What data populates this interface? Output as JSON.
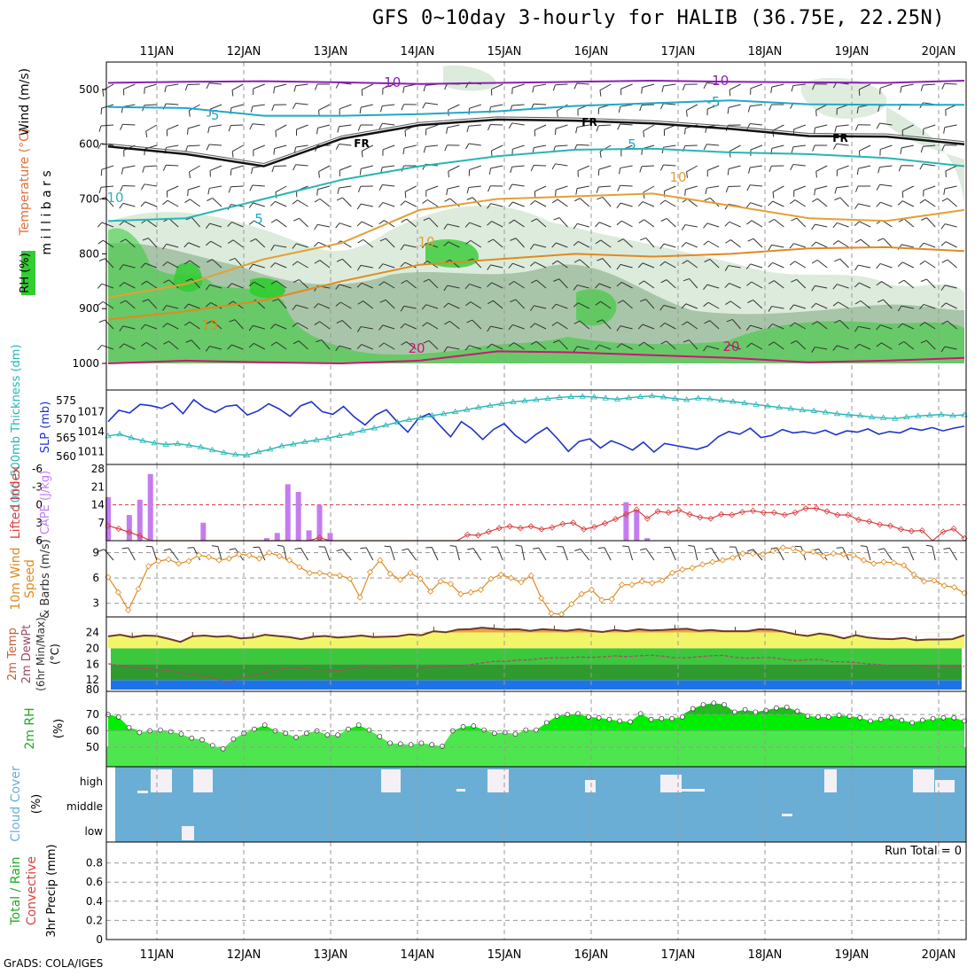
{
  "title": "GFS 0~10day 3-hourly for HALIB (36.75E, 22.25N)",
  "footer": "GrADS: COLA/IGES",
  "run_total_label": "Run Total = 0",
  "colors": {
    "rh_green": "#33cc33",
    "rh_light": "#dcebdc",
    "rh_mid": "#a9c5a9",
    "temp_orange": "#e3a035",
    "temp_cyan": "#20a8c8",
    "freezing_black": "#111111",
    "temp_purple": "#8a1fb0",
    "temp_magenta": "#d0147a",
    "slp_blue": "#1f33c9",
    "thickness_cyan": "#27b5b5",
    "cape_violet": "#c47cf0",
    "lifted_red": "#d94040",
    "wind_orange": "#e08a20",
    "temp2m_brown": "#6b3a2a",
    "cloud_blue": "#6aaed6",
    "rh2m_green": "#00ee00"
  },
  "chart_data": [
    {
      "panel": "upper-air",
      "type": "contour",
      "title": "GFS 0~10day 3-hourly for HALIB (36.75E, 22.25N)",
      "ylabel": "m i l l i b a r s",
      "side_labels": [
        "Wind (m/s)",
        "Temperature (°C)",
        "RH (%)"
      ],
      "x_ticks": [
        "11JAN",
        "12JAN",
        "13JAN",
        "14JAN",
        "15JAN",
        "16JAN",
        "17JAN",
        "18JAN",
        "19JAN",
        "20JAN"
      ],
      "y_ticks": [
        500,
        600,
        700,
        800,
        900,
        1000
      ],
      "ylim": [
        450,
        1000
      ],
      "contour_labels": [
        "-10",
        "-10",
        "-5",
        "-5",
        "FR",
        "FR",
        "FR",
        "5",
        "5",
        "10",
        "10",
        "10",
        "15",
        "20",
        "20"
      ],
      "isotherms": [
        {
          "label": "-10",
          "hpa": [
            488,
            486,
            485,
            487,
            490,
            488,
            486,
            484,
            486,
            487,
            488,
            484
          ]
        },
        {
          "label": "-5",
          "hpa": [
            532,
            534,
            548,
            548,
            545,
            540,
            530,
            525,
            520,
            527,
            528,
            528
          ]
        },
        {
          "label": "FR",
          "hpa": [
            604,
            618,
            640,
            590,
            565,
            555,
            557,
            562,
            572,
            585,
            586,
            600
          ]
        },
        {
          "label": "5",
          "hpa": [
            740,
            735,
            700,
            665,
            640,
            622,
            610,
            608,
            615,
            618,
            625,
            640
          ]
        },
        {
          "label": "10",
          "hpa": [
            880,
            855,
            810,
            780,
            720,
            700,
            695,
            690,
            712,
            735,
            740,
            720
          ]
        },
        {
          "label": "15",
          "hpa": [
            920,
            905,
            885,
            850,
            820,
            810,
            800,
            805,
            800,
            790,
            788,
            795
          ]
        },
        {
          "label": "20",
          "hpa": [
            1000,
            995,
            998,
            1000,
            995,
            978,
            980,
            985,
            990,
            998,
            995,
            990
          ]
        }
      ]
    },
    {
      "panel": "slp-thickness",
      "type": "line",
      "ylabel_left": "1000-500mb Thickness (dm)",
      "ylabel_right": "SLP (mb)",
      "y_ticks_left": [
        560,
        565,
        570,
        575
      ],
      "y_ticks_right": [
        1011,
        1014,
        1017
      ],
      "ylim_left": [
        559,
        576
      ],
      "ylim_right": [
        1009.7,
        1019.2
      ],
      "series": [
        {
          "values": [
            1015.5,
            1017.2,
            1016.8,
            1018.1,
            1017.9,
            1017.5,
            1018.3,
            1016.7,
            1018.8,
            1017.6,
            1016.9,
            1017.8,
            1018.0,
            1016.5,
            1017.1,
            1018.2,
            1017.4,
            1016.3,
            1017.9,
            1018.5,
            1017.0,
            1016.6,
            1017.8,
            1016.2,
            1015.0,
            1016.5,
            1017.3,
            1015.5,
            1013.9,
            1016.0,
            1016.7,
            1014.9,
            1013.2,
            1015.5,
            1014.4,
            1012.8,
            1014.3,
            1015.2,
            1013.5,
            1012.3,
            1013.6,
            1014.6,
            1012.9,
            1011.0,
            1012.5,
            1012.9,
            1011.5,
            1012.6,
            1012.0,
            1011.2,
            1012.4,
            1010.9,
            1012.2,
            1011.9,
            1011.6,
            1011.3,
            1011.8,
            1013.2,
            1014.0,
            1013.6,
            1014.5,
            1013.1,
            1013.4,
            1014.3,
            1013.8,
            1014.0,
            1013.7,
            1014.2,
            1013.5,
            1014.1,
            1013.9,
            1014.4,
            1013.6,
            1014.0,
            1013.8,
            1014.5,
            1014.2,
            1014.6,
            1014.1,
            1014.5,
            1014.8
          ]
        },
        {
          "values": [
            565.5,
            566.0,
            565.0,
            564.2,
            563.6,
            563.2,
            563.4,
            563.0,
            562.5,
            561.7,
            561.0,
            560.5,
            560.3,
            561.2,
            561.9,
            562.8,
            563.3,
            563.9,
            564.4,
            564.9,
            565.6,
            566.2,
            567.0,
            567.6,
            568.4,
            569.2,
            569.9,
            570.4,
            571.0,
            571.5,
            572.0,
            572.6,
            573.2,
            573.7,
            574.2,
            574.7,
            575.0,
            575.3,
            575.6,
            575.9,
            576.1,
            576.2,
            576.0,
            575.7,
            575.4,
            575.8,
            576.1,
            576.3,
            576.0,
            575.6,
            575.3,
            575.7,
            575.5,
            575.1,
            574.8,
            574.4,
            574.0,
            573.6,
            573.2,
            572.9,
            572.5,
            572.3,
            571.9,
            571.5,
            571.2,
            571.0,
            570.6,
            570.4,
            570.2,
            570.6,
            570.9,
            571.1,
            571.3,
            571.0,
            571.2
          ]
        }
      ]
    },
    {
      "panel": "cape-lifted-index",
      "type": "bar",
      "ylabel_left": "Lifted Index",
      "ylabel_right": "CAPE (J/kg)",
      "y_ticks_left": [
        "-6",
        "-3",
        "0",
        "3",
        "6"
      ],
      "y_ticks_right": [
        7,
        14,
        21,
        28
      ],
      "ylim_left": [
        6,
        -6
      ],
      "ylim_right": [
        0,
        28
      ],
      "series": [
        {
          "cape": [
            17,
            0,
            10,
            16,
            26,
            0,
            0,
            0,
            0,
            7,
            0,
            0,
            0,
            0,
            0,
            1,
            3,
            22,
            19,
            4,
            14,
            3,
            0,
            0,
            0,
            0,
            0,
            0,
            0,
            0,
            0,
            0,
            0,
            0,
            0,
            0,
            0,
            0,
            0,
            0,
            0,
            0,
            0,
            0,
            0,
            0,
            0,
            0,
            0,
            15,
            12,
            1,
            0,
            0,
            0,
            0,
            0,
            0,
            0,
            0,
            0,
            0,
            0,
            0,
            0,
            0,
            0,
            0,
            0,
            0,
            0,
            0,
            0,
            0,
            0,
            0,
            0,
            0,
            0,
            0,
            0,
            0
          ]
        },
        {
          "lifted_index": [
            3.5,
            4.0,
            4.6,
            5.2,
            6,
            6,
            6,
            6,
            6,
            6,
            6,
            6,
            6,
            6,
            6,
            6,
            6,
            6,
            6,
            6,
            5.5,
            6,
            6,
            6,
            6,
            6,
            6,
            6,
            6,
            6,
            6,
            6,
            6,
            6,
            5.0,
            5.1,
            4.5,
            3.9,
            3.6,
            3.9,
            3.6,
            4.1,
            3.8,
            3.2,
            3.0,
            4.1,
            3.7,
            3.1,
            2.4,
            1.6,
            0.8,
            2.3,
            1.1,
            1.3,
            0.9,
            1.6,
            2.1,
            2.3,
            1.6,
            1.7,
            1.2,
            1.0,
            1.3,
            1.3,
            1.7,
            1.3,
            0.6,
            0.6,
            1.1,
            1.7,
            1.7,
            2.5,
            2.8,
            3.3,
            3.5,
            4.1,
            4.4,
            4.3,
            6.0,
            4.5,
            4.0,
            5.6
          ]
        }
      ]
    },
    {
      "panel": "wind-10m",
      "type": "line",
      "ylabel": "10m Wind Speed & Barbs (m/s)",
      "y_ticks": [
        3,
        6,
        9
      ],
      "ylim": [
        1.6,
        10
      ],
      "series": [
        {
          "values": [
            6.1,
            4.3,
            2.2,
            4.7,
            7.4,
            8.0,
            8.2,
            7.7,
            8.0,
            8.7,
            8.5,
            8.1,
            8.3,
            8.8,
            8.7,
            8.3,
            9.0,
            8.6,
            8.1,
            7.3,
            6.6,
            6.6,
            6.4,
            6.3,
            5.9,
            3.7,
            6.7,
            8.1,
            6.5,
            5.8,
            6.6,
            5.9,
            4.4,
            5.6,
            5.3,
            4.1,
            4.3,
            4.6,
            5.9,
            6.4,
            6.0,
            5.5,
            6.3,
            3.6,
            1.8,
            1.7,
            2.9,
            4.1,
            4.6,
            3.4,
            3.5,
            5.2,
            5.2,
            5.6,
            5.4,
            5.7,
            6.6,
            7.0,
            7.2,
            7.6,
            7.9,
            8.1,
            8.4,
            8.9,
            8.9,
            8.8,
            9.2,
            9.6,
            9.5,
            9.0,
            9.1,
            8.6,
            8.9,
            8.8,
            8.7,
            8.1,
            7.7,
            7.9,
            7.8,
            7.5,
            6.4,
            5.6,
            5.7,
            5.1,
            4.9,
            4.2
          ]
        }
      ]
    },
    {
      "panel": "temp-2m",
      "type": "area",
      "ylabel": "2m Temp 2m DewPt (6hr Min/Max) (°C)",
      "y_ticks": [
        12,
        16,
        20,
        24
      ],
      "ylim": [
        9.6,
        27
      ],
      "y_tick_extra": "80",
      "series": [
        {
          "values": [
            23.0,
            23.4,
            22.8,
            23.2,
            23.1,
            22.4,
            21.6,
            23.0,
            23.2,
            22.9,
            23.1,
            22.5,
            22.7,
            23.4,
            23.1,
            22.8,
            22.3,
            22.9,
            23.1,
            22.7,
            22.9,
            23.2,
            22.8,
            22.9,
            23.0,
            23.5,
            23.3,
            24.3,
            24.0,
            24.7,
            24.8,
            25.2,
            24.9,
            24.7,
            24.8,
            24.4,
            24.8,
            24.6,
            24.4,
            24.8,
            24.4,
            24.1,
            24.6,
            24.3,
            24.8,
            24.5,
            24.6,
            24.8,
            24.9,
            24.4,
            24.6,
            24.3,
            24.3,
            24.3,
            24.8,
            24.7,
            24.2,
            23.5,
            23.1,
            23.7,
            23.3,
            22.5,
            23.3,
            22.7,
            22.4,
            22.3,
            22.6,
            22.0,
            22.2,
            22.2,
            22.3,
            23.3
          ]
        },
        {
          "values": [
            16.1,
            15.7,
            15.2,
            14.9,
            14.6,
            14.4,
            13.9,
            13.4,
            13.0,
            12.4,
            11.4,
            12.7,
            13.2,
            13.9,
            14.6,
            15.1,
            15.0,
            14.6,
            14.6,
            14.3,
            14.7,
            15.4,
            15.2,
            15.1,
            15.6,
            15.4,
            15.0,
            15.5,
            15.3,
            15.6,
            15.9,
            16.3,
            16.7,
            16.7,
            17.0,
            17.1,
            17.5,
            17.6,
            17.6,
            17.8,
            17.7,
            17.8,
            18.1,
            17.9,
            18.1,
            18.2,
            18.0,
            17.6,
            17.6,
            17.9,
            18.1,
            18.2,
            17.7,
            17.5,
            17.6,
            17.7,
            17.2,
            16.9,
            17.1,
            17.2,
            16.6,
            16.6,
            16.4,
            16.1,
            15.9,
            15.6,
            15.6,
            15.8,
            15.4,
            15.4,
            15.5,
            15.5
          ]
        }
      ]
    },
    {
      "panel": "rh-2m",
      "type": "area",
      "ylabel": "2m RH (%)",
      "y_ticks": [
        50,
        60,
        70
      ],
      "ylim": [
        38,
        82
      ],
      "series": [
        {
          "values": [
            70.0,
            68.5,
            62.0,
            59.0,
            60.0,
            60.5,
            59.5,
            58.0,
            55.5,
            54.5,
            51.0,
            49.0,
            55.0,
            58.5,
            61.0,
            63.5,
            60.0,
            58.5,
            56.0,
            58.5,
            60.0,
            57.5,
            57.5,
            61.0,
            63.5,
            60.5,
            56.5,
            52.5,
            52.0,
            51.5,
            52.5,
            51.5,
            50.5,
            60.0,
            62.5,
            63.0,
            60.5,
            58.5,
            59.0,
            58.0,
            60.5,
            60.5,
            65.0,
            69.0,
            70.0,
            70.5,
            68.5,
            68.0,
            67.0,
            66.0,
            65.5,
            70.5,
            67.0,
            67.5,
            67.5,
            68.5,
            73.5,
            76.0,
            77.0,
            76.0,
            71.5,
            73.0,
            71.5,
            72.5,
            74.0,
            74.5,
            72.0,
            69.0,
            68.5,
            68.5,
            69.5,
            69.0,
            68.0,
            66.0,
            67.0,
            68.0,
            66.5,
            65.0,
            66.5,
            67.5,
            68.0,
            68.0,
            66.0
          ]
        }
      ]
    },
    {
      "panel": "cloud-cover",
      "type": "bar",
      "ylabel": "Cloud Cover (%)",
      "y_ticks": [
        "high",
        "middle",
        "low"
      ]
    },
    {
      "panel": "precip",
      "type": "bar",
      "ylabel_left": "Total / Rain Convective",
      "ylabel": "3hr Precip (mm)",
      "y_ticks": [
        0,
        0.2,
        0.4,
        0.6,
        0.8
      ],
      "ylim": [
        0,
        1.0
      ],
      "x_ticks": [
        "11JAN",
        "12JAN",
        "13JAN",
        "14JAN",
        "15JAN",
        "16JAN",
        "17JAN",
        "18JAN",
        "19JAN",
        "20JAN"
      ],
      "run_total": "Run Total = 0"
    }
  ]
}
